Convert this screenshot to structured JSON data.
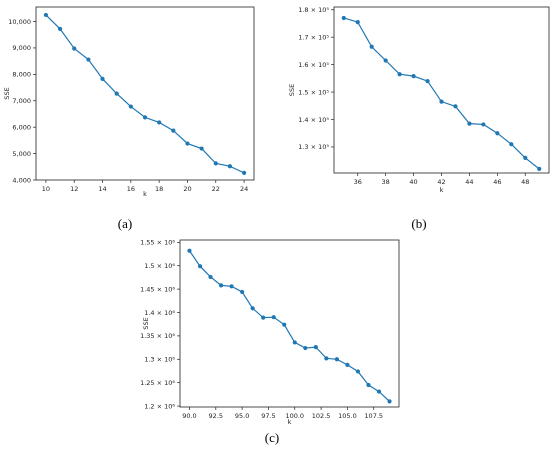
{
  "chart_data": [
    {
      "type": "line",
      "caption": "(a)",
      "xlabel": "k",
      "ylabel": "SSE",
      "x": [
        10,
        11,
        12,
        13,
        14,
        15,
        16,
        17,
        18,
        19,
        20,
        21,
        22,
        23,
        24
      ],
      "values": [
        10250,
        9720,
        8980,
        8560,
        7830,
        7270,
        6780,
        6370,
        6180,
        5870,
        5380,
        5190,
        4630,
        4520,
        4270
      ],
      "xlim": [
        9.3,
        24.7
      ],
      "ylim": [
        4000,
        10550
      ],
      "xticks": [
        10,
        12,
        14,
        16,
        18,
        20,
        22,
        24
      ],
      "xtick_labels": [
        "10",
        "12",
        "14",
        "16",
        "18",
        "20",
        "22",
        "24"
      ],
      "yticks": [
        4000,
        5000,
        6000,
        7000,
        8000,
        9000,
        10000
      ],
      "ytick_labels": [
        "4,000",
        "5,000",
        "6,000",
        "7,000",
        "8,000",
        "9,000",
        "10,000"
      ],
      "grid": false,
      "color": "#1f77b4"
    },
    {
      "type": "line",
      "caption": "(b)",
      "xlabel": "k",
      "ylabel": "SSE",
      "x": [
        35,
        36,
        37,
        38,
        39,
        40,
        41,
        42,
        43,
        44,
        45,
        46,
        47,
        48,
        49
      ],
      "values": [
        177000,
        175500,
        166500,
        161500,
        156500,
        155800,
        154000,
        146500,
        144800,
        138500,
        138200,
        135000,
        131000,
        126000,
        122000
      ],
      "xlim": [
        34.3,
        49.7
      ],
      "ylim": [
        120500,
        181000
      ],
      "xticks": [
        36,
        38,
        40,
        42,
        44,
        46,
        48
      ],
      "xtick_labels": [
        "36",
        "38",
        "40",
        "42",
        "44",
        "46",
        "48"
      ],
      "yticks": [
        130000,
        140000,
        150000,
        160000,
        170000,
        180000
      ],
      "ytick_labels": [
        "1.3 × 10⁵",
        "1.4 × 10⁵",
        "1.5 × 10⁵",
        "1.6 × 10⁵",
        "1.7 × 10⁵",
        "1.8 × 10⁵"
      ],
      "grid": false,
      "color": "#1f77b4"
    },
    {
      "type": "line",
      "caption": "(c)",
      "xlabel": "k",
      "ylabel": "SSE",
      "x": [
        90,
        91,
        92,
        93,
        94,
        95,
        96,
        97,
        98,
        99,
        100,
        101,
        102,
        103,
        104,
        105,
        106,
        107,
        108,
        109
      ],
      "values": [
        1532000,
        1499000,
        1476000,
        1458000,
        1456000,
        1444000,
        1409000,
        1389000,
        1390000,
        1374000,
        1336000,
        1324000,
        1326000,
        1302000,
        1300000,
        1288000,
        1274000,
        1245000,
        1231000,
        1210000
      ],
      "xlim": [
        89.1,
        109.9
      ],
      "ylim": [
        1198000,
        1555000
      ],
      "xticks": [
        90,
        92.5,
        95,
        97.5,
        100,
        102.5,
        105,
        107.5
      ],
      "xtick_labels": [
        "90.0",
        "92.5",
        "95.0",
        "97.5",
        "100.0",
        "102.5",
        "105.0",
        "107.5"
      ],
      "yticks": [
        1200000,
        1250000,
        1300000,
        1350000,
        1400000,
        1450000,
        1500000,
        1550000
      ],
      "ytick_labels": [
        "1.2 × 10⁶",
        "1.25 × 10⁶",
        "1.3 × 10⁶",
        "1.35 × 10⁶",
        "1.4 × 10⁶",
        "1.45 × 10⁶",
        "1.5 × 10⁶",
        "1.55 × 10⁶"
      ],
      "grid": false,
      "color": "#1f77b4"
    }
  ]
}
